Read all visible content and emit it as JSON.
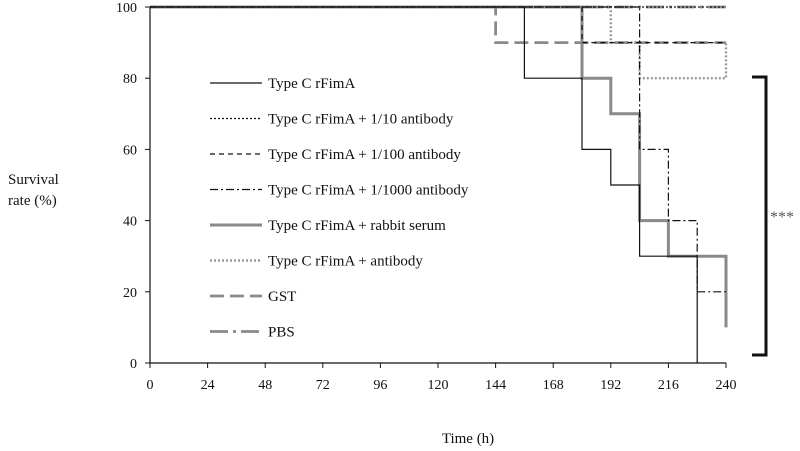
{
  "chart_data": {
    "type": "line",
    "title": "",
    "xlabel": "Time (h)",
    "ylabel_line1": "Survival",
    "ylabel_line2": "rate (%)",
    "xlim": [
      0,
      240
    ],
    "ylim": [
      0,
      100
    ],
    "xticks": [
      0,
      24,
      48,
      72,
      96,
      120,
      144,
      168,
      192,
      216,
      240
    ],
    "yticks": [
      0,
      20,
      40,
      60,
      80,
      100
    ],
    "grid": false,
    "legend_position": "center-left",
    "step": true,
    "series": [
      {
        "name": "Type C rFimA",
        "color": "#111111",
        "dash": "",
        "width": 1.2,
        "points": [
          [
            0,
            100
          ],
          [
            156,
            100
          ],
          [
            156,
            80
          ],
          [
            180,
            80
          ],
          [
            180,
            60
          ],
          [
            192,
            60
          ],
          [
            192,
            50
          ],
          [
            204,
            50
          ],
          [
            204,
            30
          ],
          [
            228,
            30
          ],
          [
            228,
            0
          ]
        ]
      },
      {
        "name": "Type C rFimA + 1/10 antibody",
        "color": "#111111",
        "dash": "2,2",
        "width": 1.3,
        "points": [
          [
            0,
            100
          ],
          [
            240,
            100
          ]
        ]
      },
      {
        "name": "Type C rFimA + 1/100 antibody",
        "color": "#111111",
        "dash": "5,4",
        "width": 1.2,
        "points": [
          [
            0,
            100
          ],
          [
            180,
            100
          ],
          [
            180,
            90
          ],
          [
            240,
            90
          ]
        ]
      },
      {
        "name": "Type C rFimA + 1/1000 antibody",
        "color": "#111111",
        "dash": "8,3,2,3",
        "width": 1.2,
        "points": [
          [
            0,
            100
          ],
          [
            204,
            100
          ],
          [
            204,
            60
          ],
          [
            216,
            60
          ],
          [
            216,
            40
          ],
          [
            228,
            40
          ],
          [
            228,
            20
          ],
          [
            240,
            20
          ]
        ]
      },
      {
        "name": "Type C rFimA + rabbit serum",
        "color": "#8a8a8a",
        "dash": "",
        "width": 3,
        "points": [
          [
            0,
            100
          ],
          [
            180,
            100
          ],
          [
            180,
            80
          ],
          [
            192,
            80
          ],
          [
            192,
            70
          ],
          [
            204,
            70
          ],
          [
            204,
            40
          ],
          [
            216,
            40
          ],
          [
            216,
            30
          ],
          [
            240,
            30
          ],
          [
            240,
            10
          ]
        ]
      },
      {
        "name": "Type C rFimA + antibody",
        "color": "#9a9a9a",
        "dash": "2,2",
        "width": 2.4,
        "points": [
          [
            0,
            100
          ],
          [
            192,
            100
          ],
          [
            192,
            90
          ],
          [
            204,
            90
          ],
          [
            204,
            80
          ],
          [
            240,
            80
          ],
          [
            240,
            90
          ]
        ]
      },
      {
        "name": "GST",
        "color": "#8a8a8a",
        "dash": "14,6",
        "width": 2.8,
        "points": [
          [
            0,
            100
          ],
          [
            144,
            100
          ],
          [
            144,
            90
          ],
          [
            240,
            90
          ]
        ]
      },
      {
        "name": "PBS",
        "color": "#8a8a8a",
        "dash": "18,5,3,5",
        "width": 2.8,
        "points": [
          [
            0,
            100
          ],
          [
            240,
            100
          ]
        ]
      }
    ],
    "significance": "***"
  }
}
